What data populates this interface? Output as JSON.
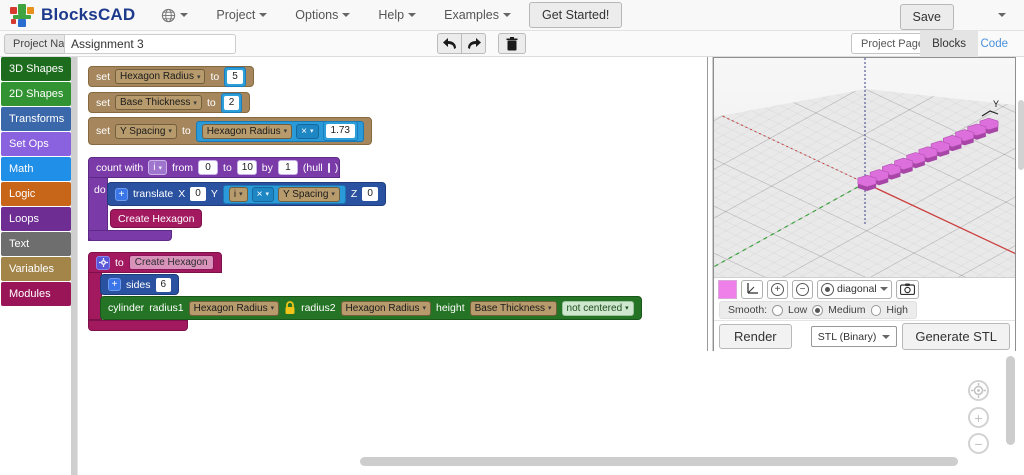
{
  "navbar": {
    "brand": "BlocksCAD",
    "menus": [
      {
        "label": "Project"
      },
      {
        "label": "Options"
      },
      {
        "label": "Help"
      },
      {
        "label": "Examples"
      }
    ],
    "get_started": "Get Started!",
    "save": "Save"
  },
  "toolbar": {
    "project_name_label": "Project Name",
    "project_name_value": "Assignment 3",
    "project_page": "Project Page",
    "tab_blocks": "Blocks",
    "tab_code": "Code"
  },
  "sidebar": {
    "items": [
      {
        "label": "3D Shapes",
        "color": "#1d6b1d"
      },
      {
        "label": "2D Shapes",
        "color": "#319331"
      },
      {
        "label": "Transforms",
        "color": "#3b68aa"
      },
      {
        "label": "Set Ops",
        "color": "#8a62e0"
      },
      {
        "label": "Math",
        "color": "#1f8fe8"
      },
      {
        "label": "Logic",
        "color": "#c76519"
      },
      {
        "label": "Loops",
        "color": "#6d2d92"
      },
      {
        "label": "Text",
        "color": "#6e6e6e"
      },
      {
        "label": "Variables",
        "color": "#a3854a"
      },
      {
        "label": "Modules",
        "color": "#9a1458"
      }
    ]
  },
  "workspace": {
    "sets": [
      {
        "kw": "set",
        "var": "Hexagon Radius",
        "to": "to",
        "value": "5"
      },
      {
        "kw": "set",
        "var": "Base Thickness",
        "to": "to",
        "value": "2"
      },
      {
        "kw": "set",
        "var": "Y Spacing",
        "to": "to",
        "expr": {
          "a": "Hexagon Radius",
          "op": "×",
          "b": "1.73"
        }
      }
    ],
    "loop": {
      "kw": "count with",
      "var": "i",
      "from": "from",
      "from_val": "0",
      "to": "to",
      "to_val": "10",
      "by": "by",
      "by_val": "1",
      "hull": "(hull",
      "hull_close": ")",
      "hull_checked": false,
      "do": "do",
      "translate": {
        "kw": "translate",
        "x": "X",
        "x_val": "0",
        "y": "Y",
        "expr": {
          "a": "i",
          "op": "×",
          "b": "Y Spacing"
        },
        "z": "Z",
        "z_val": "0"
      },
      "call": "Create Hexagon"
    },
    "module": {
      "to": "to",
      "name": "Create Hexagon",
      "sides_label": "sides",
      "sides_val": "6",
      "cylinder": {
        "kw": "cylinder",
        "r1": "radius1",
        "r1_val": "Hexagon Radius",
        "r2": "radius2",
        "r2_val": "Hexagon Radius",
        "h": "height",
        "h_val": "Base Thickness",
        "centered": "not centered"
      }
    }
  },
  "viewport": {
    "axis_label": "Y",
    "swatch_color": "#ef80ea",
    "camera_view": "diagonal",
    "smooth_label": "Smooth:",
    "smooth_options": [
      "Low",
      "Medium",
      "High"
    ],
    "smooth_selected": "Medium",
    "render": "Render",
    "stl_format": "STL (Binary)",
    "generate": "Generate STL",
    "model": {
      "count": 11,
      "top_color": "#dd6fdd",
      "side_color": "#a846a8",
      "edge_color": "#b050b0"
    },
    "scene": {
      "plane_color": "#e9e9e9",
      "x_axis_color": "#cc4040",
      "y_axis_color": "#3aa33a",
      "z_axis_color": "#3a3a8c"
    }
  }
}
